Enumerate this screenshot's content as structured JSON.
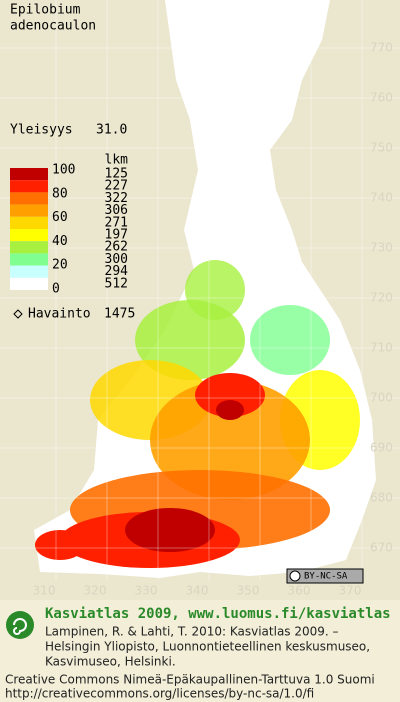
{
  "title": [
    "Epilobium",
    "adenocaulon"
  ],
  "frequency": {
    "label": "Yleisyys",
    "value": "31.0"
  },
  "legend": {
    "scale_labels": [
      "100",
      "80",
      "60",
      "40",
      "20",
      "0"
    ],
    "count_header": "lkm",
    "bands": [
      {
        "color": "#c00000",
        "count": "125"
      },
      {
        "color": "#ff2000",
        "count": "227"
      },
      {
        "color": "#ff7000",
        "count": "322"
      },
      {
        "color": "#ffa000",
        "count": "306"
      },
      {
        "color": "#ffd800",
        "count": "271"
      },
      {
        "color": "#ffff00",
        "count": "197"
      },
      {
        "color": "#a8f040",
        "count": "262"
      },
      {
        "color": "#80ff90",
        "count": "300"
      },
      {
        "color": "#c8ffff",
        "count": "294"
      },
      {
        "color": "#ffffff",
        "count": "512"
      }
    ]
  },
  "observations": {
    "label": "Havainto",
    "value": "1475"
  },
  "grid": {
    "y_labels": [
      770,
      760,
      750,
      740,
      730,
      720,
      710,
      700,
      690,
      680,
      670
    ],
    "x_labels": [
      310,
      320,
      330,
      340,
      350,
      360,
      370
    ]
  },
  "license_badge": "BY-NC-SA",
  "footer": {
    "title": "Kasviatlas 2009, www.luomus.fi/kasviatlas",
    "citation": [
      "Lampinen, R. & Lahti, T. 2010: Kasviatlas 2009. –",
      "Helsingin Yliopisto, Luonnontieteellinen keskusmuseo,",
      "Kasvimuseo, Helsinki."
    ],
    "license": [
      "Creative Commons Nimeä-Epäkaupallinen-Tarttuva 1.0 Suomi",
      "http://creativecommons.org/licenses/by-nc-sa/1.0/fi"
    ]
  }
}
